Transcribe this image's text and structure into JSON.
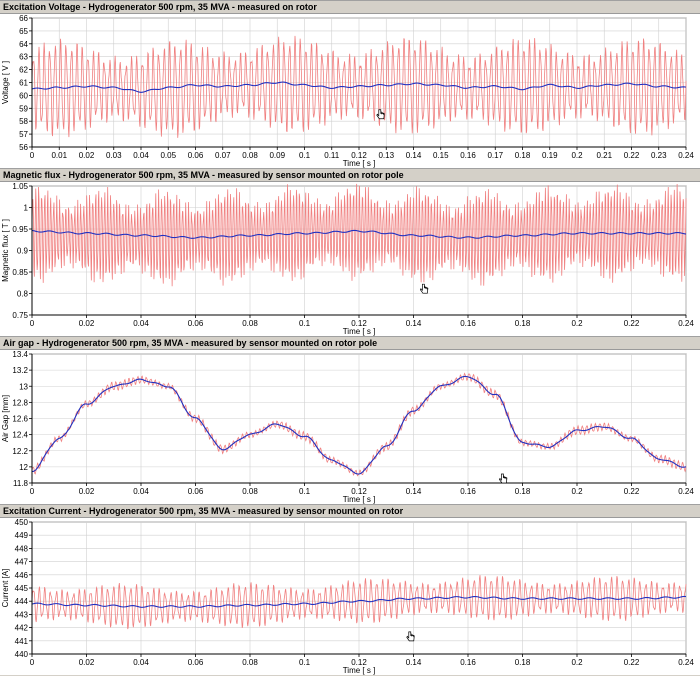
{
  "colors": {
    "raw_signal": "#f08080",
    "filtered_signal": "#2030c0",
    "grid": "#d0d0d0",
    "background": "#ffffff",
    "cursor": "#000000"
  },
  "chart_data": [
    {
      "type": "line",
      "title": "Excitation Voltage - Hydrogenerator 500 rpm, 35 MVA - measured on rotor",
      "xlabel": "Time [ s ]",
      "ylabel": "Voltage [ V ]",
      "xlim": [
        0,
        0.24
      ],
      "ylim": [
        56,
        66
      ],
      "xticks": [
        0,
        0.01,
        0.02,
        0.03,
        0.04,
        0.05,
        0.06,
        0.07,
        0.08,
        0.09,
        0.1,
        0.11,
        0.12,
        0.13,
        0.14,
        0.15,
        0.16,
        0.17,
        0.18,
        0.19,
        0.2,
        0.21,
        0.22,
        0.23,
        0.24
      ],
      "xtick_labels": [
        "0",
        "0.01",
        "0.02",
        "0.03",
        "0.04",
        "0.05",
        "0.06",
        "0.07",
        "0.08",
        "0.09",
        "0.1",
        "0.11",
        "0.12",
        "0.13",
        "0.14",
        "0.15",
        "0.16",
        "0.17",
        "0.18",
        "0.19",
        "0.2",
        "0.21",
        "0.22",
        "0.23",
        "0.24"
      ],
      "yticks": [
        56,
        57,
        58,
        59,
        60,
        61,
        62,
        63,
        64,
        65,
        66
      ],
      "ytick_labels": [
        "56",
        "57",
        "58",
        "59",
        "60",
        "61",
        "62",
        "63",
        "64",
        "65",
        "66"
      ],
      "grid": true,
      "series": [
        {
          "role": "raw",
          "x": [
            0,
            0.02,
            0.04,
            0.06,
            0.08,
            0.1,
            0.12,
            0.14,
            0.16,
            0.18,
            0.2,
            0.22,
            0.24
          ],
          "y": [
            60.5,
            60.6,
            60.4,
            60.6,
            60.9,
            60.8,
            60.7,
            60.8,
            60.6,
            60.7,
            60.7,
            60.7,
            60.6
          ],
          "ripple_amplitude": 3.3,
          "ripple_period": 0.002
        },
        {
          "role": "filtered",
          "x": [
            0,
            0.01,
            0.02,
            0.03,
            0.04,
            0.05,
            0.06,
            0.07,
            0.08,
            0.09,
            0.1,
            0.11,
            0.12,
            0.13,
            0.14,
            0.15,
            0.16,
            0.17,
            0.18,
            0.19,
            0.2,
            0.21,
            0.22,
            0.23,
            0.24
          ],
          "y": [
            60.5,
            60.6,
            60.7,
            60.6,
            60.3,
            60.6,
            60.8,
            60.7,
            60.8,
            61.0,
            60.8,
            60.6,
            60.7,
            60.8,
            60.9,
            60.8,
            60.6,
            60.7,
            60.5,
            60.8,
            60.6,
            60.8,
            60.9,
            60.7,
            60.6
          ]
        }
      ],
      "cursor": {
        "x": 0.128,
        "y": 58.5
      }
    },
    {
      "type": "line",
      "title": "Magnetic flux - Hydrogenerator 500 rpm, 35 MVA - measured by sensor mounted on rotor pole",
      "xlabel": "Time [ s ]",
      "ylabel": "Magnetic flux [ T ]",
      "xlim": [
        0,
        0.24
      ],
      "ylim": [
        0.75,
        1.05
      ],
      "xticks": [
        0,
        0.02,
        0.04,
        0.06,
        0.08,
        0.1,
        0.12,
        0.14,
        0.16,
        0.18,
        0.2,
        0.22,
        0.24
      ],
      "xtick_labels": [
        "0",
        "0.02",
        "0.04",
        "0.06",
        "0.08",
        "0.1",
        "0.12",
        "0.14",
        "0.16",
        "0.18",
        "0.2",
        "0.22",
        "0.24"
      ],
      "yticks": [
        0.75,
        0.8,
        0.85,
        0.9,
        0.95,
        1.0,
        1.05
      ],
      "ytick_labels": [
        "0.75",
        "0.8",
        "0.85",
        "0.9",
        "0.95",
        "1",
        "1.05"
      ],
      "grid": true,
      "series": [
        {
          "role": "raw",
          "x": [
            0,
            0.02,
            0.04,
            0.06,
            0.08,
            0.1,
            0.12,
            0.14,
            0.16,
            0.18,
            0.2,
            0.22,
            0.24
          ],
          "y": [
            0.94,
            0.935,
            0.93,
            0.93,
            0.935,
            0.94,
            0.945,
            0.935,
            0.93,
            0.935,
            0.94,
            0.94,
            0.94
          ],
          "ripple_amplitude": 0.1,
          "ripple_period": 0.0011
        },
        {
          "role": "filtered",
          "x": [
            0,
            0.02,
            0.04,
            0.06,
            0.08,
            0.1,
            0.12,
            0.14,
            0.16,
            0.18,
            0.2,
            0.22,
            0.24
          ],
          "y": [
            0.945,
            0.94,
            0.935,
            0.93,
            0.935,
            0.94,
            0.945,
            0.935,
            0.93,
            0.935,
            0.94,
            0.94,
            0.94
          ]
        }
      ],
      "cursor": {
        "x": 0.144,
        "y": 0.81
      }
    },
    {
      "type": "line",
      "title": "Air gap - Hydrogenerator 500 rpm, 35 MVA - measured by sensor mounted on rotor pole",
      "xlabel": "Time [ s ]",
      "ylabel": "Air Gap [mm]",
      "xlim": [
        0,
        0.24
      ],
      "ylim": [
        11.8,
        13.4
      ],
      "xticks": [
        0,
        0.02,
        0.04,
        0.06,
        0.08,
        0.1,
        0.12,
        0.14,
        0.16,
        0.18,
        0.2,
        0.22,
        0.24
      ],
      "xtick_labels": [
        "0",
        "0.02",
        "0.04",
        "0.06",
        "0.08",
        "0.1",
        "0.12",
        "0.14",
        "0.16",
        "0.18",
        "0.2",
        "0.22",
        "0.24"
      ],
      "yticks": [
        11.8,
        12.0,
        12.2,
        12.4,
        12.6,
        12.8,
        13.0,
        13.2,
        13.4
      ],
      "ytick_labels": [
        "11.8",
        "12",
        "12.2",
        "12.4",
        "12.6",
        "12.8",
        "13",
        "13.2",
        "13.4"
      ],
      "grid": true,
      "series": [
        {
          "role": "raw",
          "x": [
            0,
            0.01,
            0.02,
            0.03,
            0.04,
            0.05,
            0.06,
            0.07,
            0.08,
            0.09,
            0.1,
            0.11,
            0.12,
            0.13,
            0.14,
            0.15,
            0.16,
            0.17,
            0.18,
            0.19,
            0.2,
            0.21,
            0.22,
            0.23,
            0.24
          ],
          "y": [
            11.95,
            12.35,
            12.78,
            13.0,
            13.08,
            13.0,
            12.6,
            12.22,
            12.4,
            12.53,
            12.38,
            12.08,
            11.92,
            12.25,
            12.7,
            13.0,
            13.12,
            12.9,
            12.3,
            12.25,
            12.45,
            12.5,
            12.35,
            12.1,
            12.0
          ],
          "ripple_amplitude": 0.05,
          "ripple_period": 0.0016
        },
        {
          "role": "filtered",
          "x": [
            0,
            0.01,
            0.02,
            0.03,
            0.04,
            0.05,
            0.06,
            0.07,
            0.08,
            0.09,
            0.1,
            0.11,
            0.12,
            0.13,
            0.14,
            0.15,
            0.16,
            0.17,
            0.18,
            0.19,
            0.2,
            0.21,
            0.22,
            0.23,
            0.24
          ],
          "y": [
            11.95,
            12.35,
            12.78,
            13.0,
            13.08,
            13.0,
            12.6,
            12.22,
            12.4,
            12.53,
            12.38,
            12.08,
            11.92,
            12.25,
            12.7,
            13.0,
            13.12,
            12.9,
            12.3,
            12.25,
            12.45,
            12.5,
            12.35,
            12.1,
            12.0
          ]
        }
      ],
      "cursor": {
        "x": 0.173,
        "y": 11.85
      }
    },
    {
      "type": "line",
      "title": "Excitation Current - Hydrogenerator 500 rpm, 35 MVA - measured by sensor mounted on rotor",
      "xlabel": "Time [ s ]",
      "ylabel": "Current [A]",
      "xlim": [
        0,
        0.24
      ],
      "ylim": [
        440,
        450
      ],
      "xticks": [
        0,
        0.02,
        0.04,
        0.06,
        0.08,
        0.1,
        0.12,
        0.14,
        0.16,
        0.18,
        0.2,
        0.22,
        0.24
      ],
      "xtick_labels": [
        "0",
        "0.02",
        "0.04",
        "0.06",
        "0.08",
        "0.1",
        "0.12",
        "0.14",
        "0.16",
        "0.18",
        "0.2",
        "0.22",
        "0.24"
      ],
      "yticks": [
        440,
        441,
        442,
        443,
        444,
        445,
        446,
        447,
        448,
        449,
        450
      ],
      "ytick_labels": [
        "440",
        "441",
        "442",
        "443",
        "444",
        "445",
        "446",
        "447",
        "448",
        "449",
        "450"
      ],
      "grid": true,
      "series": [
        {
          "role": "raw",
          "x": [
            0,
            0.02,
            0.04,
            0.06,
            0.08,
            0.1,
            0.12,
            0.14,
            0.16,
            0.18,
            0.2,
            0.22,
            0.24
          ],
          "y": [
            443.8,
            443.7,
            443.6,
            443.6,
            443.7,
            443.8,
            444.0,
            444.2,
            444.3,
            444.2,
            444.2,
            444.2,
            444.3
          ],
          "ripple_amplitude": 1.5,
          "ripple_period": 0.0021
        },
        {
          "role": "filtered",
          "x": [
            0,
            0.02,
            0.04,
            0.06,
            0.08,
            0.1,
            0.12,
            0.14,
            0.16,
            0.18,
            0.2,
            0.22,
            0.24
          ],
          "y": [
            443.8,
            443.7,
            443.6,
            443.6,
            443.7,
            443.8,
            444.0,
            444.2,
            444.3,
            444.2,
            444.2,
            444.2,
            444.3
          ]
        }
      ],
      "cursor": {
        "x": 0.139,
        "y": 441.3
      }
    }
  ]
}
